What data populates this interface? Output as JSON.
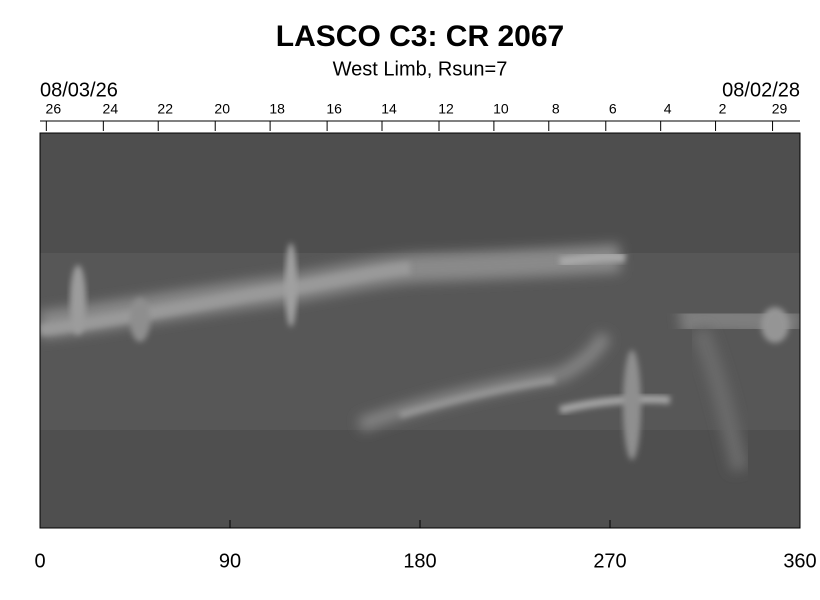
{
  "chart_data": {
    "type": "image",
    "title": "LASCO C3: CR 2067",
    "subtitle": "West Limb, Rsun=7",
    "start_date": "08/03/26",
    "end_date": "08/02/28",
    "xlim": [
      0,
      360
    ],
    "xticks": [
      0,
      90,
      180,
      270,
      360
    ],
    "x2ticks": [
      {
        "value": 3,
        "label": "26"
      },
      {
        "value": 30,
        "label": "24"
      },
      {
        "value": 56,
        "label": "22"
      },
      {
        "value": 83,
        "label": "20"
      },
      {
        "value": 109,
        "label": "18"
      },
      {
        "value": 136,
        "label": "16"
      },
      {
        "value": 162,
        "label": "14"
      },
      {
        "value": 189,
        "label": "12"
      },
      {
        "value": 215,
        "label": "10"
      },
      {
        "value": 241,
        "label": "8"
      },
      {
        "value": 268,
        "label": "6"
      },
      {
        "value": 294,
        "label": "4"
      },
      {
        "value": 320,
        "label": "2"
      },
      {
        "value": 347,
        "label": "29"
      }
    ]
  }
}
